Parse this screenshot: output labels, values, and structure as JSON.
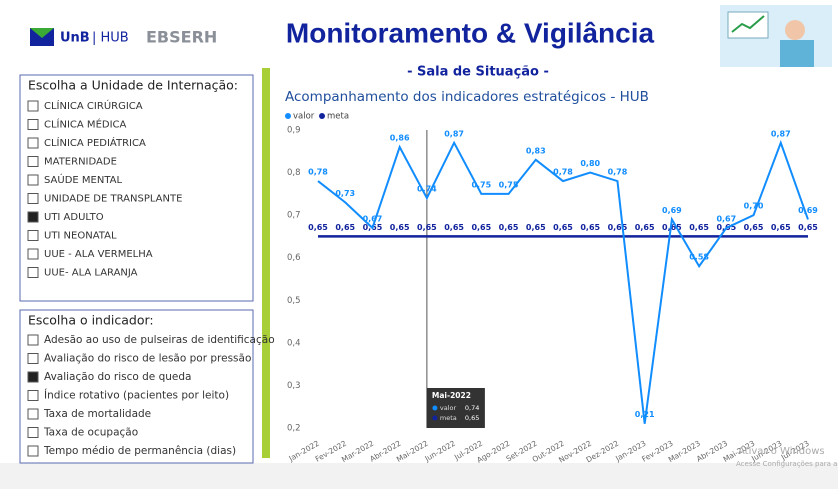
{
  "header": {
    "logo_unb": "UnB",
    "logo_hub": "| HUB",
    "logo_ebserh": "EBSERH",
    "title": "Monitoramento & Vigilância",
    "subtitle": "- Sala de Situação -"
  },
  "filters": [
    {
      "title": "Escolha a Unidade de Internação:",
      "selected": 6,
      "items": [
        "CLÍNICA CIRÚRGICA",
        "CLÍNICA MÉDICA",
        "CLÍNICA PEDIÁTRICA",
        "MATERNIDADE",
        "SAÚDE MENTAL",
        "UNIDADE DE TRANSPLANTE",
        "UTI ADULTO",
        "UTI NEONATAL",
        "UUE - ALA VERMELHA",
        "UUE- ALA LARANJA"
      ]
    },
    {
      "title": "Escolha o indicador:",
      "selected": 2,
      "items": [
        "Adesão ao uso de pulseiras de identificação",
        "Avaliação do risco de lesão por pressão",
        "Avaliação do risco de queda",
        "Índice rotativo (pacientes por leito)",
        "Taxa de mortalidade",
        "Taxa de ocupação",
        "Tempo médio de permanência (dias)"
      ]
    }
  ],
  "chart_data": {
    "type": "line",
    "title": "Acompanhamento dos indicadores estratégicos - HUB",
    "categories": [
      "Jan-2022",
      "Fev-2022",
      "Mar-2022",
      "Abr-2022",
      "Mai-2022",
      "Jun-2022",
      "Jul-2022",
      "Ago-2022",
      "Set-2022",
      "Out-2022",
      "Nov-2022",
      "Dez-2022",
      "Jan-2023",
      "Fev-2023",
      "Mar-2023",
      "Abr-2023",
      "Mai-2023",
      "Jun-2023",
      "Jul-2023"
    ],
    "series": [
      {
        "name": "valor",
        "color": "#118dff",
        "values": [
          0.78,
          0.73,
          0.67,
          0.86,
          0.74,
          0.87,
          0.75,
          0.75,
          0.83,
          0.78,
          0.8,
          0.78,
          0.21,
          0.69,
          0.58,
          0.67,
          0.7,
          0.87,
          0.69
        ],
        "value_labels": [
          "0,78",
          "0,73",
          "0,67",
          "0,86",
          "0,74",
          "0,87",
          "0,75",
          "0,75",
          "0,83",
          "0,78",
          "0,80",
          "0,78",
          "0,21",
          "0,69",
          "0,58",
          "0,67",
          "0,70",
          "0,87",
          "0,69"
        ]
      },
      {
        "name": "meta",
        "color": "#12239e",
        "values": [
          0.65,
          0.65,
          0.65,
          0.65,
          0.65,
          0.65,
          0.65,
          0.65,
          0.65,
          0.65,
          0.65,
          0.65,
          0.65,
          0.65,
          0.65,
          0.65,
          0.65,
          0.65,
          0.65
        ],
        "value_labels": [
          "0,65",
          "0,65",
          "0,65",
          "0,65",
          "0,65",
          "0,65",
          "0,65",
          "0,65",
          "0,65",
          "0,65",
          "0,65",
          "0,65",
          "0,65",
          "0,65",
          "0,65",
          "0,65",
          "0,65",
          "0,65",
          "0,65"
        ]
      }
    ],
    "ylim": [
      0.2,
      0.9
    ],
    "yticks": [
      {
        "value": 0.2,
        "label": "0,2"
      },
      {
        "value": 0.3,
        "label": "0,3"
      },
      {
        "value": 0.4,
        "label": "0,4"
      },
      {
        "value": 0.5,
        "label": "0,5"
      },
      {
        "value": 0.6,
        "label": "0,6"
      },
      {
        "value": 0.7,
        "label": "0,7"
      },
      {
        "value": 0.8,
        "label": "0,8"
      },
      {
        "value": 0.9,
        "label": "0,9"
      }
    ],
    "legend": "top-left",
    "tooltip_index": 4
  },
  "watermark": {
    "title": "Ativar o Windows",
    "text": "Acesse Configurações para a"
  }
}
